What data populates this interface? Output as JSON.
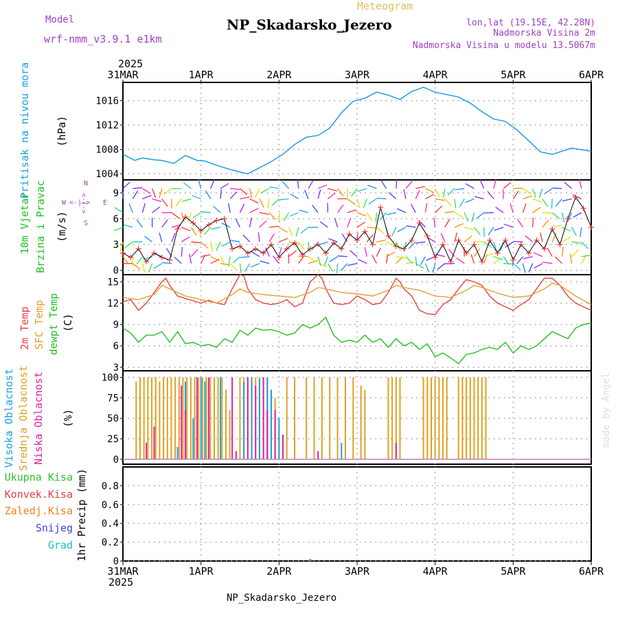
{
  "header": {
    "model_label": "Model",
    "model_name": "wrf-nmm_v3.9.1 e1km",
    "meteogram": "Meteogram",
    "station": "NP_Skadarsko_Jezero",
    "lonlat": "lon,lat (19.15E, 42.28N)",
    "elev_line": "Nadmorska Visina 2m",
    "model_elev_line": "Nadmorska Visina u modelu 13.5067m",
    "year_top": "2025",
    "year_bottom": "2025",
    "footer": "NP_Skadarsko_Jezero",
    "watermark": "made by Angel"
  },
  "x_axis": {
    "dates": [
      "31MAR",
      "1APR",
      "2APR",
      "3APR",
      "4APR",
      "5APR",
      "6APR"
    ]
  },
  "panels": {
    "pressure": {
      "title": "Pritisak na nivou mora",
      "unit": "(hPa)",
      "ticks": [
        "1004",
        "1008",
        "1012",
        "1016"
      ]
    },
    "wind": {
      "title1": "10m Vjetar",
      "title2": "Brzina i Pravac",
      "unit": "(m/s)",
      "ticks": [
        "0",
        "3",
        "6",
        "9"
      ],
      "compass_n": "N",
      "compass_s": "S",
      "compass_w": "W",
      "compass_e": "E",
      "compass_arrows": "<-|->"
    },
    "temp": {
      "t2": "2m Temp",
      "sfc": "SFC Temp",
      "dew": "dewpt Temp",
      "unit": "(C)",
      "ticks": [
        "3",
        "6",
        "9",
        "12",
        "15"
      ]
    },
    "cloud": {
      "high": "Visoka Oblacnost",
      "mid": "Srednja Oblacnost",
      "low": "Niska Oblacnost",
      "unit": "(%)",
      "ticks": [
        "0",
        "25",
        "50",
        "75",
        "100"
      ]
    },
    "precip": {
      "total": "Ukupna Kisa",
      "convective": "Konvek.Kisa",
      "frozen": "Zaledj.Kisa",
      "snow": "Snijeg",
      "graupel": "Grad",
      "unit": "1hr Precip (mm)",
      "ticks": [
        "0",
        "0.2",
        "0.4",
        "0.6",
        "0.8"
      ]
    }
  },
  "colors": {
    "pressure": "#1a9fe0",
    "t2": "#e84040",
    "sfc": "#e0a030",
    "dew": "#20c020",
    "high": "#1aa0e0",
    "mid": "#e0a020",
    "low": "#e020a0",
    "model": "#a040c0",
    "meteogram": "#e0c060",
    "precip_total": "#30c030",
    "precip_conv": "#e04040",
    "precip_frozen": "#f08020",
    "precip_snow": "#4040e0",
    "precip_graupel": "#20c0c0"
  },
  "chart_data": [
    {
      "type": "line",
      "panel": "pressure",
      "x_days": [
        0,
        0.15,
        0.25,
        0.4,
        0.5,
        0.65,
        0.8,
        0.95,
        1.05,
        1.2,
        1.35,
        1.5,
        1.6,
        1.75,
        1.9,
        2.05,
        2.2,
        2.35,
        2.5,
        2.65,
        2.8,
        2.95,
        3.1,
        3.25,
        3.4,
        3.55,
        3.7,
        3.85,
        4.0,
        4.15,
        4.3,
        4.45,
        4.6,
        4.75,
        4.9,
        5.05,
        5.2,
        5.35,
        5.5,
        5.6,
        5.75,
        5.9,
        6.0
      ],
      "values": [
        1007.2,
        1006.2,
        1006.6,
        1006.3,
        1006.2,
        1005.7,
        1007.0,
        1006.2,
        1006.1,
        1005.4,
        1004.8,
        1004.3,
        1004.0,
        1005.0,
        1006.0,
        1007.2,
        1008.8,
        1010.0,
        1010.3,
        1011.5,
        1014.0,
        1015.9,
        1016.4,
        1017.4,
        1016.9,
        1016.2,
        1017.5,
        1018.2,
        1017.4,
        1017.0,
        1016.6,
        1015.6,
        1014.2,
        1013.0,
        1012.6,
        1011.2,
        1009.4,
        1007.6,
        1007.2,
        1007.6,
        1008.2,
        1007.9,
        1007.7
      ],
      "ylim": [
        1003,
        1019
      ]
    },
    {
      "type": "line",
      "panel": "wind",
      "x_days": [
        0,
        0.1,
        0.2,
        0.3,
        0.4,
        0.5,
        0.6,
        0.7,
        0.8,
        0.9,
        1.0,
        1.1,
        1.2,
        1.3,
        1.4,
        1.5,
        1.6,
        1.7,
        1.8,
        1.9,
        2.0,
        2.1,
        2.2,
        2.3,
        2.4,
        2.5,
        2.6,
        2.7,
        2.8,
        2.9,
        3.0,
        3.1,
        3.2,
        3.3,
        3.4,
        3.5,
        3.6,
        3.7,
        3.8,
        3.9,
        4.0,
        4.1,
        4.2,
        4.3,
        4.4,
        4.5,
        4.6,
        4.7,
        4.8,
        4.9,
        5.0,
        5.1,
        5.2,
        5.3,
        5.4,
        5.5,
        5.6,
        5.7,
        5.8,
        5.9,
        6.0
      ],
      "values": [
        2.0,
        1.5,
        2.5,
        1.0,
        2.0,
        1.5,
        1.2,
        4.8,
        6.2,
        5.5,
        4.6,
        5.3,
        5.8,
        6.0,
        2.5,
        2.8,
        2.0,
        2.5,
        2.0,
        3.0,
        1.5,
        2.5,
        3.2,
        1.8,
        2.5,
        3.0,
        2.0,
        3.2,
        2.5,
        4.2,
        3.5,
        4.5,
        3.0,
        7.3,
        4.0,
        2.8,
        2.5,
        3.5,
        5.5,
        4.0,
        1.5,
        3.0,
        1.0,
        3.5,
        2.0,
        3.0,
        1.0,
        3.5,
        2.0,
        3.5,
        1.2,
        3.0,
        2.0,
        3.5,
        2.5,
        4.8,
        3.0,
        6.0,
        8.5,
        7.2,
        5.0
      ],
      "ylim": [
        -0.5,
        10.5
      ]
    },
    {
      "type": "line",
      "panel": "temp",
      "series": [
        {
          "name": "2m Temp",
          "x_days": [
            0,
            0.1,
            0.2,
            0.3,
            0.4,
            0.5,
            0.55,
            0.6,
            0.7,
            0.85,
            1.0,
            1.1,
            1.2,
            1.3,
            1.4,
            1.5,
            1.55,
            1.6,
            1.7,
            1.8,
            1.9,
            2.0,
            2.1,
            2.2,
            2.3,
            2.4,
            2.5,
            2.55,
            2.6,
            2.7,
            2.8,
            2.9,
            3.0,
            3.1,
            3.2,
            3.3,
            3.4,
            3.5,
            3.55,
            3.6,
            3.7,
            3.8,
            3.9,
            4.0,
            4.1,
            4.2,
            4.3,
            4.4,
            4.5,
            4.6,
            4.7,
            4.8,
            4.9,
            5.0,
            5.1,
            5.2,
            5.3,
            5.4,
            5.5,
            5.6,
            5.7,
            5.8,
            5.9,
            6.0
          ],
          "values": [
            12.2,
            12.5,
            11.0,
            12.0,
            13.5,
            15.0,
            15.5,
            14.5,
            13.0,
            12.5,
            12.0,
            12.4,
            12.0,
            11.8,
            14.0,
            16.0,
            15.8,
            14.0,
            12.5,
            12.0,
            11.8,
            12.0,
            12.5,
            11.5,
            12.0,
            15.0,
            16.0,
            15.5,
            14.0,
            12.0,
            11.8,
            12.0,
            13.0,
            12.5,
            11.8,
            12.0,
            13.5,
            15.5,
            15.0,
            14.0,
            13.0,
            11.0,
            10.5,
            10.4,
            11.8,
            12.5,
            14.0,
            15.3,
            15.0,
            14.5,
            13.0,
            12.0,
            11.5,
            11.0,
            11.8,
            12.5,
            14.0,
            15.5,
            15.5,
            14.5,
            13.0,
            12.0,
            11.5,
            11.0
          ],
          "color": "#e84040"
        },
        {
          "name": "SFC Temp",
          "x_days": [
            0,
            0.2,
            0.4,
            0.5,
            0.6,
            0.8,
            1.0,
            1.2,
            1.4,
            1.5,
            1.6,
            1.8,
            2.0,
            2.2,
            2.4,
            2.5,
            2.6,
            2.8,
            3.0,
            3.2,
            3.4,
            3.5,
            3.6,
            3.8,
            4.0,
            4.2,
            4.4,
            4.5,
            4.6,
            4.8,
            5.0,
            5.2,
            5.4,
            5.5,
            5.6,
            5.8,
            6.0
          ],
          "values": [
            12.8,
            12.5,
            13.2,
            14.5,
            14.0,
            13.0,
            12.5,
            12.0,
            13.2,
            14.0,
            13.5,
            13.2,
            13.0,
            12.8,
            13.5,
            14.2,
            14.0,
            13.5,
            13.3,
            13.0,
            13.8,
            14.5,
            14.2,
            13.8,
            13.0,
            12.8,
            13.8,
            14.5,
            14.2,
            13.4,
            12.8,
            13.0,
            14.0,
            14.8,
            14.5,
            13.0,
            11.8
          ],
          "color": "#e0a030"
        },
        {
          "name": "dewpt Temp",
          "x_days": [
            0,
            0.1,
            0.2,
            0.3,
            0.4,
            0.5,
            0.6,
            0.7,
            0.8,
            0.9,
            1.0,
            1.1,
            1.2,
            1.3,
            1.4,
            1.5,
            1.6,
            1.7,
            1.8,
            1.9,
            2.0,
            2.1,
            2.2,
            2.3,
            2.4,
            2.5,
            2.6,
            2.7,
            2.8,
            2.9,
            3.0,
            3.1,
            3.2,
            3.3,
            3.4,
            3.5,
            3.6,
            3.7,
            3.8,
            3.9,
            4.0,
            4.1,
            4.2,
            4.3,
            4.4,
            4.5,
            4.6,
            4.7,
            4.8,
            4.9,
            5.0,
            5.1,
            5.2,
            5.3,
            5.4,
            5.5,
            5.6,
            5.7,
            5.8,
            5.9,
            6.0
          ],
          "values": [
            8.5,
            7.8,
            6.5,
            7.5,
            7.5,
            8.0,
            6.5,
            8.0,
            6.3,
            6.5,
            6.0,
            6.2,
            5.8,
            7.0,
            6.5,
            8.2,
            7.5,
            8.5,
            8.2,
            8.3,
            8.0,
            7.5,
            7.8,
            9.0,
            8.5,
            9.0,
            10.0,
            7.5,
            6.5,
            6.8,
            6.5,
            7.5,
            6.5,
            7.0,
            5.8,
            7.0,
            6.0,
            6.5,
            5.5,
            6.3,
            4.5,
            5.0,
            4.3,
            3.5,
            4.8,
            5.0,
            5.5,
            5.8,
            5.5,
            6.5,
            5.0,
            6.0,
            5.5,
            6.0,
            7.0,
            8.0,
            7.5,
            7.0,
            8.5,
            9.0,
            9.2
          ],
          "color": "#20c020"
        }
      ],
      "ylim": [
        2.5,
        16
      ]
    },
    {
      "type": "bar",
      "panel": "cloud",
      "series": [
        {
          "name": "Srednja Oblacnost",
          "x_days": [
            0.17,
            0.22,
            0.27,
            0.32,
            0.37,
            0.42,
            0.47,
            0.52,
            0.57,
            0.62,
            0.67,
            0.72,
            0.77,
            0.82,
            0.87,
            0.92,
            0.97,
            1.02,
            1.07,
            1.12,
            1.17,
            1.22,
            1.27,
            1.32,
            1.37,
            1.5,
            1.55,
            1.6,
            1.65,
            1.7,
            1.75,
            1.8,
            1.85,
            1.9,
            1.95,
            2.0,
            2.1,
            2.2,
            2.35,
            2.45,
            2.55,
            2.65,
            2.75,
            2.85,
            2.95,
            3.05,
            3.1,
            3.4,
            3.45,
            3.5,
            3.55,
            3.85,
            3.9,
            3.95,
            4.0,
            4.05,
            4.1,
            4.15,
            4.3,
            4.35,
            4.4,
            4.45,
            4.5,
            4.55,
            4.6,
            4.65
          ],
          "values": [
            95,
            100,
            100,
            100,
            100,
            100,
            95,
            100,
            100,
            100,
            100,
            100,
            100,
            100,
            100,
            100,
            100,
            100,
            100,
            100,
            100,
            100,
            100,
            85,
            60,
            100,
            100,
            100,
            100,
            100,
            100,
            100,
            100,
            85,
            75,
            40,
            100,
            100,
            100,
            100,
            100,
            100,
            100,
            100,
            100,
            90,
            85,
            100,
            100,
            100,
            100,
            100,
            100,
            100,
            100,
            100,
            100,
            100,
            100,
            100,
            100,
            100,
            100,
            100,
            100,
            100
          ],
          "color": "#e0a020"
        },
        {
          "name": "Visoka Oblacnost",
          "x_days": [
            0.7,
            0.8,
            0.9,
            1.0,
            1.05,
            1.25,
            1.55,
            1.65,
            1.75,
            1.85,
            1.9,
            2.0,
            2.8
          ],
          "values": [
            15,
            95,
            50,
            100,
            95,
            100,
            95,
            100,
            98,
            100,
            85,
            50,
            20
          ],
          "color": "#1aa0e0"
        },
        {
          "name": "Niska Oblacnost",
          "x_days": [
            0.3,
            0.4,
            0.75,
            0.8,
            0.95,
            1.1,
            1.4,
            1.45,
            1.6,
            1.7,
            1.8,
            1.85,
            1.95,
            2.05,
            2.5,
            3.5
          ],
          "values": [
            20,
            40,
            90,
            60,
            100,
            100,
            100,
            10,
            100,
            90,
            100,
            60,
            60,
            30,
            10,
            20
          ],
          "color": "#e020a0"
        }
      ],
      "ylim": [
        0,
        100
      ]
    },
    {
      "type": "bar",
      "panel": "precip",
      "series": [
        {
          "name": "Ukupna Kisa",
          "x_days": [
            2.4
          ],
          "values": [
            0.02
          ],
          "color": "#30c030"
        },
        {
          "name": "Konvek.Kisa",
          "x_days": [
            0.5
          ],
          "values": [
            0.005
          ],
          "color": "#e04040"
        }
      ],
      "ylim": [
        0,
        1.0
      ]
    }
  ]
}
